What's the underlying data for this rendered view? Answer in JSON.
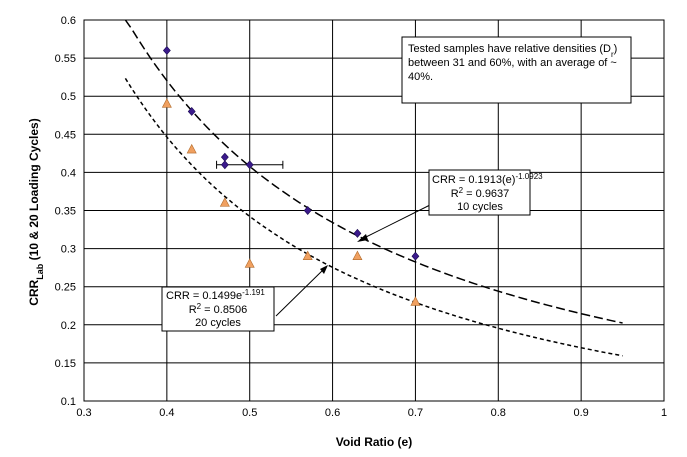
{
  "chart_data": {
    "type": "scatter",
    "xlabel": "Void Ratio (e)",
    "ylabel": {
      "main": "CRR",
      "sub": "Lab",
      "rest": " (10 & 20 Loading Cycles)"
    },
    "xlim": [
      0.3,
      1.0
    ],
    "ylim": [
      0.1,
      0.6
    ],
    "x_ticks": [
      "0.3",
      "0.4",
      "0.5",
      "0.6",
      "0.7",
      "0.8",
      "0.9",
      "1"
    ],
    "y_ticks": [
      "0.1",
      "0.15",
      "0.2",
      "0.25",
      "0.3",
      "0.35",
      "0.4",
      "0.45",
      "0.5",
      "0.55",
      "0.6"
    ],
    "grid": true,
    "series": [
      {
        "marker": "diamond",
        "color": "#3b1a8c",
        "points": [
          [
            0.4,
            0.56
          ],
          [
            0.43,
            0.48
          ],
          [
            0.47,
            0.42
          ],
          [
            0.47,
            0.41
          ],
          [
            0.5,
            0.41
          ],
          [
            0.57,
            0.35
          ],
          [
            0.63,
            0.32
          ],
          [
            0.7,
            0.29
          ]
        ],
        "error_bar": {
          "x": 0.5,
          "y": 0.41,
          "xmin": 0.46,
          "xmax": 0.54
        }
      },
      {
        "marker": "triangle",
        "color": "#f0a060",
        "points": [
          [
            0.4,
            0.49
          ],
          [
            0.43,
            0.43
          ],
          [
            0.47,
            0.36
          ],
          [
            0.5,
            0.28
          ],
          [
            0.57,
            0.29
          ],
          [
            0.63,
            0.29
          ],
          [
            0.7,
            0.23
          ]
        ]
      }
    ],
    "fits": [
      {
        "coef": 0.1913,
        "exp": -1.0923,
        "from": 0.35,
        "to": 0.95,
        "style": "long-dash"
      },
      {
        "coef": 0.1499,
        "exp": -1.191,
        "from": 0.35,
        "to": 0.95,
        "style": "short-dash"
      }
    ],
    "annotations": {
      "note": {
        "lines": [
          "Tested samples have relative densities (D",
          "between 31 and 60%, with an average of ~",
          "40%."
        ],
        "sub": "r",
        "after_sub": ")"
      },
      "fit10": {
        "eq_prefix": "CRR = 0.1913(e)",
        "eq_exp": "-1.0923",
        "r2_prefix": "R",
        "r2_sup": "2",
        "r2_value": " = 0.9637",
        "cycles": "10 cycles"
      },
      "fit20": {
        "eq_prefix": "CRR = 0.1499e",
        "eq_exp": "-1.191",
        "r2_prefix": "R",
        "r2_sup": "2",
        "r2_value": " = 0.8506",
        "cycles": "20 cycles"
      }
    }
  }
}
